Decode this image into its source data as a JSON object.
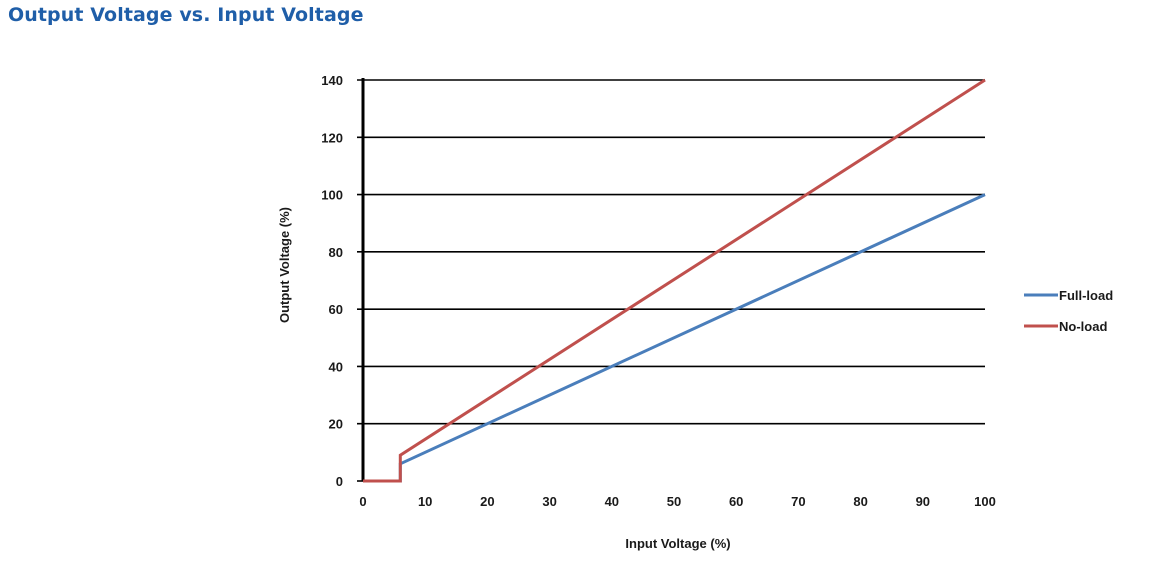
{
  "page": {
    "title": "Output Voltage vs. Input Voltage"
  },
  "chart_data": {
    "type": "line",
    "title": "Output Voltage vs. Input Voltage",
    "xlabel": "Input Voltage (%)",
    "ylabel": "Output Voltage (%)",
    "xlim": [
      0,
      100
    ],
    "ylim": [
      0,
      140
    ],
    "xticks": [
      0,
      10,
      20,
      30,
      40,
      50,
      60,
      70,
      80,
      90,
      100
    ],
    "yticks": [
      0,
      20,
      40,
      60,
      80,
      100,
      120,
      140
    ],
    "grid": "horizontal",
    "legend_position": "right",
    "series": [
      {
        "name": "Full-load",
        "color": "#4a7ebb",
        "x": [
          0,
          6,
          6,
          100
        ],
        "y": [
          0,
          0,
          6,
          100
        ]
      },
      {
        "name": "No-load",
        "color": "#c0504d",
        "x": [
          0,
          6,
          6,
          100
        ],
        "y": [
          0,
          0,
          9,
          140
        ]
      }
    ]
  }
}
